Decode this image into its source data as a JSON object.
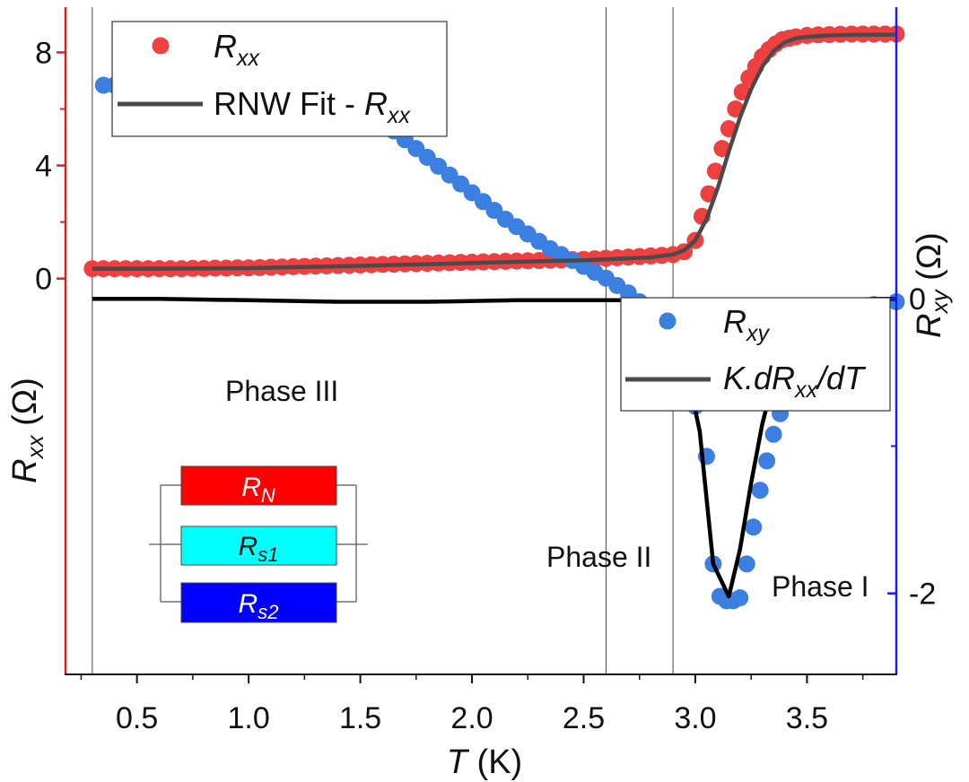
{
  "chart_data": {
    "type": "scatter",
    "x": {
      "label_var": "T",
      "label_unit": " (K)",
      "range": [
        0.18,
        3.9
      ],
      "ticks": [
        "0.5",
        "1.0",
        "1.5",
        "2.0",
        "2.5",
        "3.0",
        "3.5"
      ],
      "tick_values": [
        0.5,
        1.0,
        1.5,
        2.0,
        2.5,
        3.0,
        3.5
      ]
    },
    "y_left": {
      "label_main": "R",
      "label_sub": "xx",
      "label_unit": " (Ω)",
      "range": [
        -14.0,
        9.6
      ],
      "ticks": [
        "0",
        "4",
        "8"
      ],
      "tick_values": [
        0,
        4,
        8
      ],
      "color": "#e02020"
    },
    "y_right": {
      "label_main": "R",
      "label_sub": "xy",
      "label_unit": " (Ω)",
      "range": [
        -2.55,
        1.98
      ],
      "ticks": [
        "0",
        "-2"
      ],
      "tick_values": [
        0,
        -2
      ],
      "color": "#1a1aff"
    },
    "vlines": [
      0.3,
      2.6,
      2.9
    ],
    "series": [
      {
        "name": "Rxx",
        "kind": "points",
        "axis": "left",
        "color": "#ee4040",
        "x": [
          0.3,
          0.35,
          0.4,
          0.45,
          0.5,
          0.55,
          0.6,
          0.65,
          0.7,
          0.75,
          0.8,
          0.85,
          0.9,
          0.95,
          1.0,
          1.05,
          1.1,
          1.15,
          1.2,
          1.25,
          1.3,
          1.35,
          1.4,
          1.45,
          1.5,
          1.55,
          1.6,
          1.65,
          1.7,
          1.75,
          1.8,
          1.85,
          1.9,
          1.95,
          2.0,
          2.05,
          2.1,
          2.15,
          2.2,
          2.25,
          2.3,
          2.35,
          2.4,
          2.45,
          2.5,
          2.55,
          2.6,
          2.65,
          2.7,
          2.75,
          2.8,
          2.85,
          2.9,
          2.95,
          3.0,
          3.03,
          3.06,
          3.09,
          3.12,
          3.15,
          3.18,
          3.21,
          3.24,
          3.27,
          3.3,
          3.33,
          3.36,
          3.39,
          3.42,
          3.45,
          3.5,
          3.55,
          3.6,
          3.65,
          3.7,
          3.75,
          3.8,
          3.85,
          3.9
        ],
        "y": [
          0.35,
          0.35,
          0.35,
          0.35,
          0.35,
          0.35,
          0.35,
          0.35,
          0.35,
          0.36,
          0.36,
          0.37,
          0.37,
          0.38,
          0.38,
          0.39,
          0.4,
          0.41,
          0.42,
          0.43,
          0.44,
          0.45,
          0.46,
          0.47,
          0.48,
          0.49,
          0.5,
          0.51,
          0.52,
          0.53,
          0.54,
          0.55,
          0.56,
          0.57,
          0.58,
          0.59,
          0.6,
          0.61,
          0.62,
          0.63,
          0.64,
          0.65,
          0.66,
          0.67,
          0.68,
          0.7,
          0.72,
          0.74,
          0.76,
          0.78,
          0.8,
          0.82,
          0.85,
          0.95,
          1.35,
          2.2,
          3.0,
          3.8,
          4.6,
          5.3,
          6.0,
          6.6,
          7.1,
          7.5,
          7.85,
          8.1,
          8.3,
          8.45,
          8.5,
          8.55,
          8.6,
          8.62,
          8.63,
          8.64,
          8.65,
          8.65,
          8.65,
          8.65,
          8.65
        ]
      },
      {
        "name": "RNW Fit - Rxx",
        "kind": "line",
        "axis": "left",
        "color": "#4a4a4a",
        "x": [
          0.3,
          0.6,
          1.0,
          1.5,
          2.0,
          2.5,
          2.8,
          2.9,
          2.95,
          3.0,
          3.05,
          3.1,
          3.15,
          3.2,
          3.25,
          3.3,
          3.35,
          3.4,
          3.45,
          3.5,
          3.6,
          3.7,
          3.9
        ],
        "y": [
          0.35,
          0.35,
          0.37,
          0.45,
          0.55,
          0.65,
          0.75,
          0.85,
          1.0,
          1.35,
          2.1,
          3.2,
          4.5,
          5.7,
          6.7,
          7.5,
          8.05,
          8.35,
          8.5,
          8.55,
          8.6,
          8.62,
          8.63
        ]
      },
      {
        "name": "Rxy",
        "kind": "points",
        "axis": "right",
        "color": "#3b7fe0",
        "x": [
          0.35,
          0.4,
          0.45,
          0.5,
          0.55,
          0.6,
          0.65,
          0.7,
          0.75,
          0.8,
          0.85,
          0.9,
          0.95,
          1.0,
          1.05,
          1.1,
          1.15,
          1.2,
          1.25,
          1.3,
          1.35,
          1.4,
          1.45,
          1.5,
          1.55,
          1.6,
          1.65,
          1.7,
          1.75,
          1.8,
          1.85,
          1.9,
          1.95,
          2.0,
          2.05,
          2.1,
          2.15,
          2.2,
          2.25,
          2.3,
          2.35,
          2.4,
          2.45,
          2.5,
          2.55,
          2.6,
          2.65,
          2.7,
          2.75,
          2.8,
          2.85,
          2.9,
          2.95,
          3.0,
          3.05,
          3.08,
          3.11,
          3.14,
          3.17,
          3.2,
          3.23,
          3.26,
          3.29,
          3.32,
          3.35,
          3.38,
          3.41,
          3.45,
          3.5,
          3.55,
          3.6,
          3.65,
          3.7,
          3.8,
          3.9
        ],
        "y": [
          1.45,
          1.45,
          1.45,
          1.45,
          1.45,
          1.45,
          1.45,
          1.44,
          1.44,
          1.44,
          1.43,
          1.43,
          1.43,
          1.42,
          1.42,
          1.42,
          1.41,
          1.41,
          1.4,
          1.39,
          1.38,
          1.36,
          1.33,
          1.29,
          1.24,
          1.19,
          1.14,
          1.08,
          1.02,
          0.96,
          0.9,
          0.84,
          0.78,
          0.72,
          0.66,
          0.6,
          0.54,
          0.49,
          0.44,
          0.39,
          0.34,
          0.3,
          0.26,
          0.22,
          0.18,
          0.14,
          0.09,
          0.04,
          -0.02,
          -0.1,
          -0.2,
          -0.3,
          -0.48,
          -0.73,
          -1.07,
          -1.8,
          -2.02,
          -2.05,
          -2.05,
          -2.03,
          -1.8,
          -1.55,
          -1.3,
          -1.1,
          -0.92,
          -0.78,
          -0.65,
          -0.5,
          -0.38,
          -0.28,
          -0.2,
          -0.14,
          -0.09,
          -0.04,
          -0.02
        ]
      },
      {
        "name": "K.dRxx/dT",
        "kind": "line",
        "axis": "right",
        "color": "#000000",
        "x": [
          0.3,
          0.6,
          1.0,
          1.4,
          1.8,
          2.2,
          2.5,
          2.7,
          2.78,
          2.83,
          2.95,
          3.02,
          3.08,
          3.15,
          3.2,
          3.25,
          3.3,
          3.35,
          3.4,
          3.45,
          3.5,
          3.55,
          3.6,
          3.7,
          3.8,
          3.9
        ],
        "y": [
          0.0,
          0.0,
          -0.01,
          -0.02,
          -0.02,
          -0.01,
          -0.01,
          -0.01,
          -0.03,
          -0.1,
          -0.4,
          -0.9,
          -1.8,
          -2.02,
          -1.7,
          -1.25,
          -0.85,
          -0.55,
          -0.35,
          -0.22,
          -0.12,
          -0.07,
          -0.04,
          -0.01,
          0.0,
          0.0
        ]
      }
    ],
    "legend_top": {
      "rxx_main": "R",
      "rxx_sub": "xx",
      "fit_prefix": "RNW Fit - ",
      "fit_main": "R",
      "fit_sub": "xx"
    },
    "legend_right": {
      "rxy_main": "R",
      "rxy_sub": "xy",
      "k_prefix": "K.",
      "k_d": "dR",
      "k_sub": "xx",
      "k_suffix": "/dT"
    },
    "annotations": {
      "phase3": "Phase III",
      "phase2": "Phase II",
      "phase1": "Phase I"
    },
    "inset": {
      "rn_main": "R",
      "rn_sub": "N",
      "rs1_main": "R",
      "rs1_sub": "s1",
      "rs2_main": "R",
      "rs2_sub": "s2",
      "colors": [
        "#ff0000",
        "#00ffff",
        "#0000ff"
      ]
    }
  }
}
